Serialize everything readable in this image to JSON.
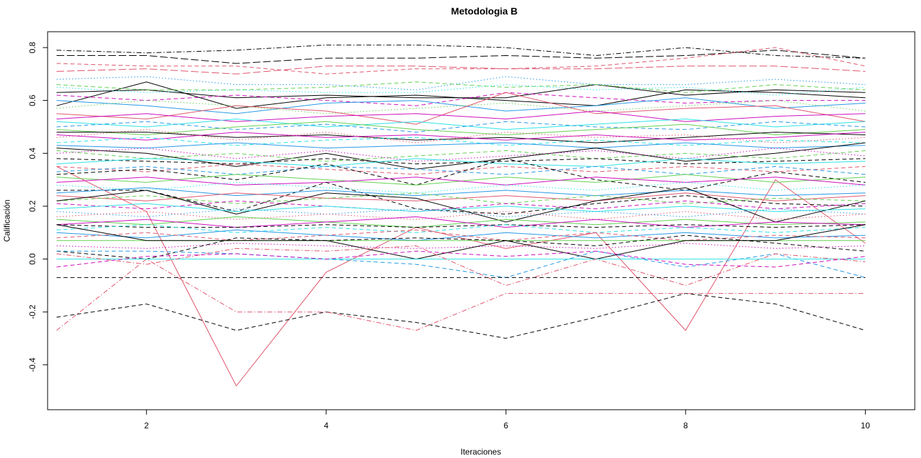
{
  "chart_data": {
    "type": "line",
    "title": "Metodologia B",
    "xlabel": "Iteraciones",
    "ylabel": "Calificación",
    "x": [
      1,
      2,
      3,
      4,
      5,
      6,
      7,
      8,
      9,
      10
    ],
    "xlim": [
      0.9,
      10.55
    ],
    "ylim": [
      -0.57,
      0.86
    ],
    "x_ticks": [
      "2",
      "4",
      "6",
      "8",
      "10"
    ],
    "y_ticks": [
      "-0.4",
      "-0.2",
      "0.0",
      "0.2",
      "0.4",
      "0.6",
      "0.8"
    ],
    "grid": false,
    "legend": "none",
    "palette": [
      "#000000",
      "#DF536B",
      "#61D04F",
      "#2297E6",
      "#28E2E5",
      "#CD0BBC"
    ],
    "series": [
      {
        "color": "#DF536B",
        "dash": "solid",
        "values": [
          0.35,
          0.18,
          -0.48,
          -0.05,
          0.12,
          0.04,
          0.1,
          -0.27,
          0.3,
          0.06
        ]
      },
      {
        "color": "#000000",
        "dash": "dashed",
        "values": [
          -0.22,
          -0.17,
          -0.27,
          -0.2,
          -0.24,
          -0.3,
          -0.22,
          -0.13,
          -0.17,
          -0.27
        ]
      },
      {
        "color": "#DF536B",
        "dash": "dashdot",
        "values": [
          -0.27,
          0.0,
          -0.2,
          -0.2,
          -0.27,
          -0.13,
          -0.13,
          -0.13,
          -0.13,
          -0.13
        ]
      },
      {
        "color": "#000000",
        "dash": "dashdot",
        "values": [
          0.79,
          0.78,
          0.79,
          0.81,
          0.81,
          0.8,
          0.77,
          0.8,
          0.77,
          0.76
        ]
      },
      {
        "color": "#000000",
        "dash": "longdash",
        "values": [
          0.77,
          0.77,
          0.74,
          0.76,
          0.76,
          0.77,
          0.76,
          0.77,
          0.79,
          0.76
        ]
      },
      {
        "color": "#DF536B",
        "dash": "dashed",
        "values": [
          0.74,
          0.73,
          0.73,
          0.7,
          0.72,
          0.72,
          0.73,
          0.76,
          0.8,
          0.73
        ]
      },
      {
        "color": "#DF536B",
        "dash": "longdash",
        "values": [
          0.71,
          0.72,
          0.7,
          0.73,
          0.73,
          0.72,
          0.72,
          0.73,
          0.73,
          0.71
        ]
      },
      {
        "color": "#000000",
        "dash": "solid",
        "values": [
          0.58,
          0.67,
          0.57,
          0.61,
          0.62,
          0.6,
          0.58,
          0.64,
          0.63,
          0.61
        ]
      },
      {
        "color": "#000000",
        "dash": "solid",
        "values": [
          0.63,
          0.64,
          0.61,
          0.62,
          0.61,
          0.61,
          0.66,
          0.62,
          0.64,
          0.63
        ]
      },
      {
        "color": "#2297E6",
        "dash": "dotted",
        "values": [
          0.68,
          0.69,
          0.66,
          0.66,
          0.64,
          0.69,
          0.66,
          0.66,
          0.68,
          0.66
        ]
      },
      {
        "color": "#61D04F",
        "dash": "dashed",
        "values": [
          0.66,
          0.64,
          0.64,
          0.65,
          0.67,
          0.65,
          0.66,
          0.63,
          0.66,
          0.64
        ]
      },
      {
        "color": "#28E2E5",
        "dash": "dotted",
        "values": [
          0.65,
          0.63,
          0.64,
          0.63,
          0.63,
          0.66,
          0.64,
          0.65,
          0.62,
          0.65
        ]
      },
      {
        "color": "#CD0BBC",
        "dash": "dashed",
        "values": [
          0.62,
          0.6,
          0.62,
          0.6,
          0.58,
          0.63,
          0.61,
          0.59,
          0.6,
          0.6
        ]
      },
      {
        "color": "#2297E6",
        "dash": "solid",
        "values": [
          0.6,
          0.58,
          0.55,
          0.59,
          0.6,
          0.56,
          0.58,
          0.61,
          0.57,
          0.59
        ]
      },
      {
        "color": "#61D04F",
        "dash": "dotted",
        "values": [
          0.57,
          0.6,
          0.58,
          0.55,
          0.57,
          0.59,
          0.56,
          0.58,
          0.6,
          0.56
        ]
      },
      {
        "color": "#DF536B",
        "dash": "solid",
        "values": [
          0.55,
          0.53,
          0.58,
          0.56,
          0.51,
          0.63,
          0.55,
          0.57,
          0.58,
          0.52
        ]
      },
      {
        "color": "#CD0BBC",
        "dash": "solid",
        "values": [
          0.53,
          0.55,
          0.52,
          0.54,
          0.55,
          0.53,
          0.56,
          0.52,
          0.54,
          0.55
        ]
      },
      {
        "color": "#28E2E5",
        "dash": "solid",
        "values": [
          0.52,
          0.5,
          0.53,
          0.5,
          0.52,
          0.49,
          0.51,
          0.53,
          0.5,
          0.52
        ]
      },
      {
        "color": "#2297E6",
        "dash": "dashed",
        "values": [
          0.5,
          0.52,
          0.49,
          0.51,
          0.48,
          0.52,
          0.5,
          0.49,
          0.52,
          0.5
        ]
      },
      {
        "color": "#61D04F",
        "dash": "solid",
        "values": [
          0.49,
          0.47,
          0.5,
          0.52,
          0.49,
          0.47,
          0.49,
          0.51,
          0.47,
          0.49
        ]
      },
      {
        "color": "#000000",
        "dash": "solid",
        "values": [
          0.48,
          0.48,
          0.46,
          0.47,
          0.45,
          0.46,
          0.44,
          0.46,
          0.48,
          0.47
        ]
      },
      {
        "color": "#CD0BBC",
        "dash": "solid",
        "values": [
          0.47,
          0.45,
          0.48,
          0.46,
          0.47,
          0.45,
          0.47,
          0.45,
          0.46,
          0.48
        ]
      },
      {
        "color": "#DF536B",
        "dash": "dotted",
        "values": [
          0.46,
          0.49,
          0.45,
          0.48,
          0.44,
          0.48,
          0.46,
          0.47,
          0.44,
          0.46
        ]
      },
      {
        "color": "#28E2E5",
        "dash": "dashed",
        "values": [
          0.44,
          0.46,
          0.43,
          0.45,
          0.46,
          0.43,
          0.45,
          0.43,
          0.45,
          0.44
        ]
      },
      {
        "color": "#2297E6",
        "dash": "solid",
        "values": [
          0.43,
          0.42,
          0.44,
          0.42,
          0.43,
          0.44,
          0.42,
          0.44,
          0.42,
          0.43
        ]
      },
      {
        "color": "#000000",
        "dash": "solid",
        "values": [
          0.42,
          0.4,
          0.35,
          0.4,
          0.34,
          0.38,
          0.42,
          0.37,
          0.4,
          0.44
        ]
      },
      {
        "color": "#61D04F",
        "dash": "dashed",
        "values": [
          0.41,
          0.38,
          0.4,
          0.37,
          0.39,
          0.41,
          0.38,
          0.4,
          0.38,
          0.41
        ]
      },
      {
        "color": "#CD0BBC",
        "dash": "dotted",
        "values": [
          0.4,
          0.42,
          0.38,
          0.41,
          0.37,
          0.39,
          0.41,
          0.38,
          0.42,
          0.39
        ]
      },
      {
        "color": "#000000",
        "dash": "dashed",
        "values": [
          0.38,
          0.37,
          0.36,
          0.38,
          0.36,
          0.37,
          0.38,
          0.36,
          0.37,
          0.38
        ]
      },
      {
        "color": "#28E2E5",
        "dash": "solid",
        "values": [
          0.36,
          0.38,
          0.37,
          0.35,
          0.38,
          0.36,
          0.35,
          0.38,
          0.36,
          0.37
        ]
      },
      {
        "color": "#DF536B",
        "dash": "dashed",
        "values": [
          0.35,
          0.33,
          0.36,
          0.34,
          0.32,
          0.35,
          0.33,
          0.35,
          0.33,
          0.35
        ]
      },
      {
        "color": "#2297E6",
        "dash": "dashed",
        "values": [
          0.33,
          0.35,
          0.32,
          0.35,
          0.34,
          0.32,
          0.35,
          0.32,
          0.35,
          0.32
        ]
      },
      {
        "color": "#000000",
        "dash": "dashed",
        "values": [
          0.32,
          0.34,
          0.3,
          0.36,
          0.28,
          0.38,
          0.3,
          0.26,
          0.33,
          0.29
        ]
      },
      {
        "color": "#61D04F",
        "dash": "solid",
        "values": [
          0.31,
          0.29,
          0.32,
          0.3,
          0.28,
          0.31,
          0.29,
          0.32,
          0.29,
          0.31
        ]
      },
      {
        "color": "#CD0BBC",
        "dash": "solid",
        "values": [
          0.29,
          0.31,
          0.28,
          0.29,
          0.31,
          0.28,
          0.31,
          0.29,
          0.31,
          0.28
        ]
      },
      {
        "color": "#28E2E5",
        "dash": "dotted",
        "values": [
          0.28,
          0.26,
          0.29,
          0.27,
          0.25,
          0.28,
          0.26,
          0.29,
          0.26,
          0.28
        ]
      },
      {
        "color": "#000000",
        "dash": "dashed",
        "values": [
          0.26,
          0.26,
          0.18,
          0.29,
          0.19,
          0.17,
          0.21,
          0.24,
          0.21,
          0.2
        ]
      },
      {
        "color": "#2297E6",
        "dash": "solid",
        "values": [
          0.25,
          0.27,
          0.24,
          0.26,
          0.24,
          0.26,
          0.24,
          0.26,
          0.24,
          0.25
        ]
      },
      {
        "color": "#DF536B",
        "dash": "solid",
        "values": [
          0.24,
          0.22,
          0.25,
          0.23,
          0.22,
          0.24,
          0.22,
          0.25,
          0.22,
          0.24
        ]
      },
      {
        "color": "#61D04F",
        "dash": "dashed",
        "values": [
          0.22,
          0.24,
          0.21,
          0.23,
          0.25,
          0.21,
          0.24,
          0.21,
          0.23,
          0.22
        ]
      },
      {
        "color": "#CD0BBC",
        "dash": "dashed",
        "values": [
          0.21,
          0.19,
          0.22,
          0.2,
          0.18,
          0.21,
          0.19,
          0.22,
          0.19,
          0.21
        ]
      },
      {
        "color": "#000000",
        "dash": "solid",
        "values": [
          0.22,
          0.26,
          0.17,
          0.25,
          0.23,
          0.14,
          0.22,
          0.27,
          0.14,
          0.22
        ]
      },
      {
        "color": "#28E2E5",
        "dash": "solid",
        "values": [
          0.19,
          0.21,
          0.18,
          0.2,
          0.18,
          0.2,
          0.18,
          0.2,
          0.18,
          0.19
        ]
      },
      {
        "color": "#2297E6",
        "dash": "dotted",
        "values": [
          0.18,
          0.16,
          0.19,
          0.17,
          0.19,
          0.16,
          0.18,
          0.16,
          0.19,
          0.17
        ]
      },
      {
        "color": "#DF536B",
        "dash": "dotted",
        "values": [
          0.16,
          0.18,
          0.15,
          0.17,
          0.15,
          0.18,
          0.15,
          0.18,
          0.15,
          0.17
        ]
      },
      {
        "color": "#61D04F",
        "dash": "solid",
        "values": [
          0.15,
          0.13,
          0.16,
          0.14,
          0.12,
          0.15,
          0.13,
          0.15,
          0.13,
          0.14
        ]
      },
      {
        "color": "#CD0BBC",
        "dash": "solid",
        "values": [
          0.13,
          0.15,
          0.12,
          0.14,
          0.16,
          0.12,
          0.15,
          0.12,
          0.14,
          0.13
        ]
      },
      {
        "color": "#000000",
        "dash": "dashed",
        "values": [
          0.13,
          0.12,
          0.12,
          0.13,
          0.12,
          0.13,
          0.12,
          0.13,
          0.12,
          0.13
        ]
      },
      {
        "color": "#28E2E5",
        "dash": "dashed",
        "values": [
          0.11,
          0.13,
          0.1,
          0.12,
          0.1,
          0.13,
          0.1,
          0.12,
          0.1,
          0.12
        ]
      },
      {
        "color": "#2297E6",
        "dash": "solid",
        "values": [
          0.1,
          0.08,
          0.11,
          0.09,
          0.07,
          0.1,
          0.08,
          0.1,
          0.08,
          0.09
        ]
      },
      {
        "color": "#DF536B",
        "dash": "dashed",
        "values": [
          0.08,
          0.1,
          0.07,
          0.09,
          0.11,
          0.07,
          0.1,
          0.07,
          0.09,
          0.08
        ]
      },
      {
        "color": "#61D04F",
        "dash": "solid",
        "values": [
          0.07,
          0.07,
          0.07,
          0.07,
          0.07,
          0.07,
          0.07,
          0.07,
          0.07,
          0.07
        ]
      },
      {
        "color": "#000000",
        "dash": "dashed",
        "values": [
          0.03,
          0.0,
          0.08,
          0.07,
          0.08,
          0.07,
          0.05,
          0.09,
          0.06,
          0.03
        ]
      },
      {
        "color": "#CD0BBC",
        "dash": "dotted",
        "values": [
          0.05,
          0.04,
          0.06,
          0.05,
          0.04,
          0.05,
          0.04,
          0.06,
          0.04,
          0.05
        ]
      },
      {
        "color": "#000000",
        "dash": "solid",
        "values": [
          0.13,
          0.07,
          0.07,
          0.07,
          0.0,
          0.07,
          0.0,
          0.07,
          0.07,
          0.13
        ]
      },
      {
        "color": "#2297E6",
        "dash": "dashed",
        "values": [
          0.03,
          0.03,
          0.02,
          0.0,
          -0.02,
          -0.07,
          0.03,
          -0.03,
          0.02,
          -0.07
        ]
      },
      {
        "color": "#28E2E5",
        "dash": "solid",
        "values": [
          0.0,
          0.0,
          0.0,
          0.0,
          0.0,
          0.0,
          0.0,
          0.0,
          0.0,
          0.0
        ]
      },
      {
        "color": "#DF536B",
        "dash": "dashdot",
        "values": [
          0.02,
          -0.02,
          0.04,
          0.03,
          0.05,
          -0.1,
          0.0,
          -0.1,
          0.02,
          -0.01
        ]
      },
      {
        "color": "#CD0BBC",
        "dash": "dashed",
        "values": [
          -0.03,
          0.01,
          0.02,
          0.0,
          0.03,
          0.01,
          0.03,
          -0.02,
          -0.03,
          0.01
        ]
      },
      {
        "color": "#000000",
        "dash": "dashed",
        "values": [
          -0.07,
          -0.07,
          -0.07,
          -0.07,
          -0.07,
          -0.07,
          -0.07,
          -0.07,
          -0.07,
          -0.07
        ]
      }
    ]
  }
}
